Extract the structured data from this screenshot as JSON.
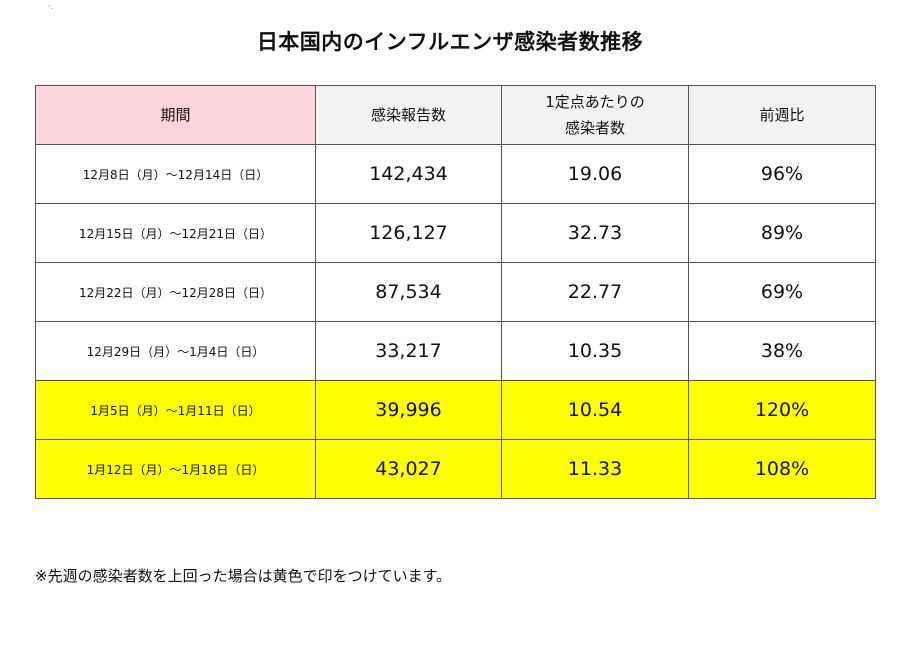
{
  "corner_mark": "·.",
  "title": "日本国内のインフルエンザ感染者数推移",
  "headers": {
    "period": "期間",
    "reports": "感染報告数",
    "per_point_line1": "1定点あたりの",
    "per_point_line2": "感染者数",
    "wow": "前週比"
  },
  "rows": [
    {
      "period": "12月8日（月）～12月14日（日）",
      "reports": "142,434",
      "per_point": "19.06",
      "wow": "96%",
      "highlight": false
    },
    {
      "period": "12月15日（月）～12月21日（日）",
      "reports": "126,127",
      "per_point": "32.73",
      "wow": "89%",
      "highlight": false
    },
    {
      "period": "12月22日（月）～12月28日（日）",
      "reports": "87,534",
      "per_point": "22.77",
      "wow": "69%",
      "highlight": false
    },
    {
      "period": "12月29日（月）～1月4日（日）",
      "reports": "33,217",
      "per_point": "10.35",
      "wow": "38%",
      "highlight": false
    },
    {
      "period": "1月5日（月）～1月11日（日）",
      "reports": "39,996",
      "per_point": "10.54",
      "wow": "120%",
      "highlight": true
    },
    {
      "period": "1月12日（月）～1月18日（日）",
      "reports": "43,027",
      "per_point": "11.33",
      "wow": "108%",
      "highlight": true
    }
  ],
  "colors": {
    "highlight": "#ffff00",
    "period_header": "#fcd5dc",
    "header": "#f2f2f2"
  },
  "footnote": "※先週の感染者数を上回った場合は黄色で印をつけています。"
}
